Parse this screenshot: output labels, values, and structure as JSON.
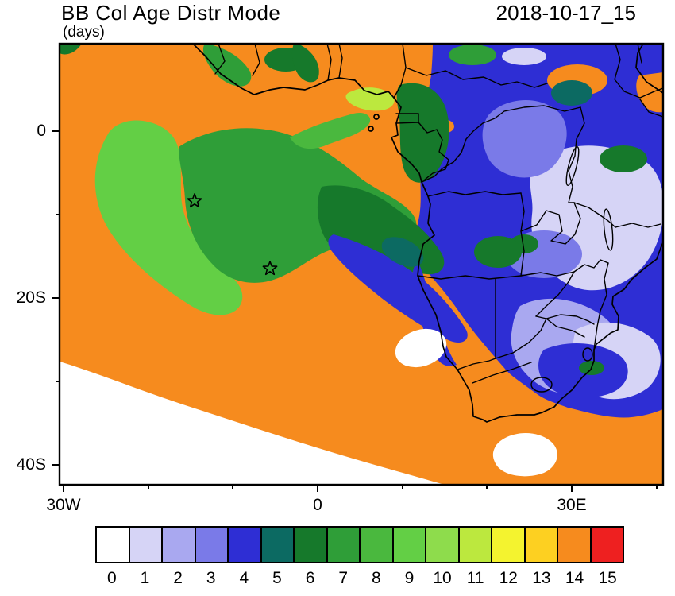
{
  "header": {
    "title": "BB Col Age Distr Mode",
    "subtitle": "(days)",
    "timestamp": "2018-10-17_15"
  },
  "axes": {
    "y_ticks": [
      "0",
      "20S",
      "40S"
    ],
    "x_ticks": [
      "30W",
      "0",
      "30E"
    ]
  },
  "colorbar": {
    "labels": [
      "0",
      "1",
      "2",
      "3",
      "4",
      "5",
      "6",
      "7",
      "8",
      "9",
      "10",
      "11",
      "12",
      "13",
      "14",
      "15"
    ],
    "colors": [
      "#ffffff",
      "#d6d4f6",
      "#a9a8f0",
      "#7a7ae8",
      "#2e2ed4",
      "#0c6a62",
      "#16792b",
      "#2f9e38",
      "#4ab83e",
      "#63cf45",
      "#8edc4c",
      "#bce83e",
      "#f4f32f",
      "#fdd021",
      "#f68b1e",
      "#ee2020"
    ]
  },
  "chart_data": {
    "type": "heatmap",
    "title": "BB Col Age Distr Mode",
    "units": "(days)",
    "timestamp": "2018-10-17_15",
    "x_axis": {
      "label": "longitude",
      "ticks": [
        "30W",
        "0",
        "30E"
      ],
      "range_approx": [
        "30W",
        "41E"
      ]
    },
    "y_axis": {
      "label": "latitude",
      "ticks": [
        "0",
        "20S",
        "40S"
      ],
      "range_approx": [
        "10N",
        "42S"
      ]
    },
    "levels": [
      0,
      1,
      2,
      3,
      4,
      5,
      6,
      7,
      8,
      9,
      10,
      11,
      12,
      13,
      14,
      15
    ],
    "palette": [
      "#ffffff",
      "#d6d4f6",
      "#a9a8f0",
      "#7a7ae8",
      "#2e2ed4",
      "#0c6a62",
      "#16792b",
      "#2f9e38",
      "#4ab83e",
      "#63cf45",
      "#8edc4c",
      "#bce83e",
      "#f4f32f",
      "#fdd021",
      "#f68b1e",
      "#ee2020"
    ],
    "regions": [
      {
        "area": "South Atlantic west and central ocean",
        "mode_days": 14
      },
      {
        "area": "bright green crescent west of plume core (~17W-8W, 5S-20S)",
        "mode_days": 9
      },
      {
        "area": "plume core east of crescent (~12W-2E, 2S-15S)",
        "mode_days": 7
      },
      {
        "area": "southeast plume extension toward Angola coast",
        "mode_days": 6
      },
      {
        "area": "band along Angola/Namibia coast into interior",
        "mode_days": 4
      },
      {
        "area": "eastern and southern Africa interior (mottled)",
        "mode_days": "1-4 mixed"
      },
      {
        "area": "Gulf of Guinea coastal patch",
        "mode_days": 11
      },
      {
        "area": "southwest corner of domain and scattered ocean spots",
        "mode_days": 0
      },
      {
        "area": "small patches near top-right (East Africa)",
        "mode_days": 14
      }
    ],
    "markers": [
      {
        "symbol": "star",
        "lon_approx": "14.5W",
        "lat_approx": "8.5S"
      },
      {
        "symbol": "star",
        "lon_approx": "5.5W",
        "lat_approx": "16.5S"
      }
    ]
  }
}
